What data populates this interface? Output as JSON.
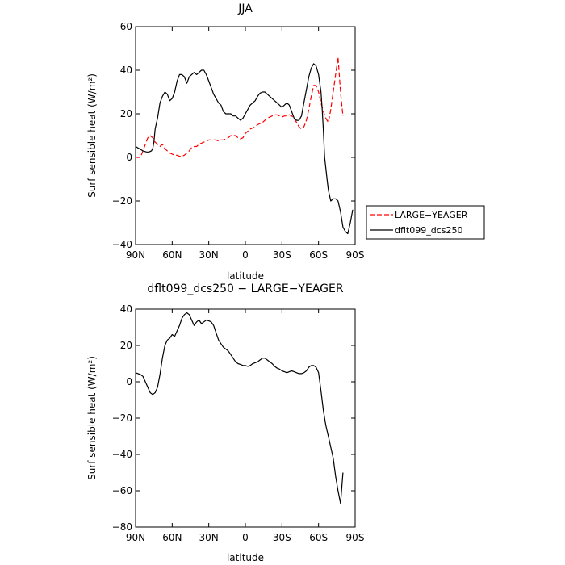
{
  "chart_data": [
    {
      "type": "line",
      "title": "JJA",
      "xlabel": "latitude",
      "ylabel": "Surf sensible heat (W/m²)",
      "xlim": [
        90,
        -90
      ],
      "ylim": [
        -40,
        60
      ],
      "xticks": [
        90,
        60,
        30,
        0,
        -30,
        -60,
        -90
      ],
      "xtick_labels": [
        "90N",
        "60N",
        "30N",
        "0",
        "30S",
        "60S",
        "90S"
      ],
      "yticks": [
        -40,
        -20,
        0,
        20,
        40,
        60
      ],
      "ytick_labels": [
        "−40",
        "−20",
        "0",
        "20",
        "40",
        "60"
      ],
      "legend": "right",
      "series": [
        {
          "name": "LARGE−YEAGER",
          "color": "#ff0000",
          "style": "dashed",
          "x": [
            90,
            86,
            84,
            80,
            78,
            76,
            74,
            72,
            70,
            68,
            66,
            64,
            62,
            60,
            58,
            56,
            54,
            52,
            50,
            48,
            46,
            44,
            42,
            40,
            38,
            36,
            34,
            32,
            30,
            28,
            26,
            24,
            22,
            20,
            18,
            16,
            14,
            12,
            10,
            8,
            6,
            4,
            2,
            0,
            -2,
            -4,
            -6,
            -8,
            -10,
            -12,
            -14,
            -16,
            -18,
            -20,
            -22,
            -24,
            -26,
            -28,
            -30,
            -32,
            -34,
            -36,
            -38,
            -40,
            -42,
            -44,
            -46,
            -48,
            -50,
            -52,
            -54,
            -56,
            -58,
            -60,
            -62,
            -64,
            -66,
            -68,
            -70,
            -72,
            -74,
            -76,
            -78,
            -80
          ],
          "y": [
            0,
            0,
            3,
            9,
            10,
            9,
            7,
            6,
            5,
            6,
            4,
            3,
            2,
            1.5,
            1,
            1,
            0.5,
            0.5,
            1,
            2,
            3,
            4.5,
            5,
            5,
            6,
            6.5,
            7,
            7.5,
            8,
            8,
            8,
            8,
            7.5,
            8,
            8,
            8.5,
            9,
            10,
            10,
            10,
            9,
            8.5,
            9,
            11,
            12,
            13,
            13.5,
            14,
            15,
            15.5,
            16,
            17,
            18,
            18.5,
            19,
            19.5,
            19.5,
            19,
            18.5,
            19,
            19,
            19.5,
            19,
            18,
            16,
            14,
            13,
            14,
            17,
            22,
            28,
            33,
            33,
            30,
            25,
            21,
            18,
            16,
            22,
            30,
            38,
            46,
            30,
            19
          ]
        },
        {
          "name": "dflt099_dcs250",
          "color": "#000000",
          "style": "solid",
          "x": [
            90,
            87,
            84,
            81,
            79,
            77,
            76,
            75,
            74,
            72,
            70,
            68,
            66,
            64,
            62,
            60,
            58,
            56,
            54,
            52,
            50,
            48,
            46,
            44,
            42,
            40,
            38,
            36,
            34,
            32,
            30,
            28,
            26,
            24,
            22,
            20,
            18,
            16,
            14,
            12,
            10,
            8,
            6,
            4,
            2,
            0,
            -2,
            -4,
            -6,
            -8,
            -10,
            -12,
            -14,
            -16,
            -18,
            -20,
            -22,
            -24,
            -26,
            -28,
            -30,
            -32,
            -34,
            -36,
            -38,
            -40,
            -42,
            -44,
            -46,
            -48,
            -50,
            -52,
            -54,
            -56,
            -58,
            -60,
            -62,
            -63,
            -64,
            -65,
            -66,
            -67,
            -68,
            -70,
            -72,
            -74,
            -76,
            -78,
            -80,
            -82,
            -84,
            -86,
            -88
          ],
          "y": [
            5,
            4,
            3,
            2.5,
            2.5,
            3,
            4,
            7,
            13,
            18,
            25,
            28,
            30,
            29,
            26,
            27,
            30,
            35,
            38,
            38,
            37,
            34,
            37,
            38,
            39,
            38,
            39,
            40,
            40,
            38,
            35,
            32,
            29,
            27,
            25,
            24,
            21,
            20,
            20,
            20,
            19,
            19,
            18,
            17,
            18,
            20,
            22,
            24,
            25,
            26,
            28,
            29.5,
            30,
            30,
            29,
            28,
            27,
            26,
            25,
            24,
            23,
            24,
            25,
            24,
            21,
            18,
            17,
            17,
            19,
            25,
            31,
            37,
            41,
            43,
            42,
            38,
            30,
            22,
            12,
            0,
            -5,
            -10,
            -15,
            -20,
            -19,
            -19,
            -20,
            -25,
            -32,
            -34,
            -35,
            -30,
            -24
          ]
        }
      ]
    },
    {
      "type": "line",
      "title": "dflt099_dcs250 − LARGE−YEAGER",
      "xlabel": "latitude",
      "ylabel": "Surf sensible heat (W/m²)",
      "xlim": [
        90,
        -90
      ],
      "ylim": [
        -80,
        40
      ],
      "xticks": [
        90,
        60,
        30,
        0,
        -30,
        -60,
        -90
      ],
      "xtick_labels": [
        "90N",
        "60N",
        "30N",
        "0",
        "30S",
        "60S",
        "90S"
      ],
      "yticks": [
        -80,
        -60,
        -40,
        -20,
        0,
        20,
        40
      ],
      "ytick_labels": [
        "−80",
        "−60",
        "−40",
        "−20",
        "0",
        "20",
        "40"
      ],
      "series": [
        {
          "color": "#000000",
          "style": "solid",
          "x": [
            90,
            88,
            86,
            84,
            82,
            80,
            78,
            76,
            74,
            72,
            70,
            68,
            66,
            64,
            62,
            60,
            58,
            56,
            54,
            52,
            50,
            48,
            46,
            44,
            42,
            40,
            38,
            36,
            34,
            32,
            30,
            28,
            26,
            24,
            22,
            20,
            18,
            16,
            14,
            12,
            10,
            8,
            6,
            4,
            2,
            0,
            -2,
            -4,
            -6,
            -8,
            -10,
            -12,
            -14,
            -16,
            -18,
            -20,
            -22,
            -24,
            -26,
            -28,
            -30,
            -32,
            -34,
            -36,
            -38,
            -40,
            -42,
            -44,
            -46,
            -48,
            -50,
            -52,
            -54,
            -56,
            -58,
            -60,
            -62,
            -64,
            -66,
            -68,
            -70,
            -72,
            -74,
            -76,
            -78,
            -80
          ],
          "y": [
            5,
            4.5,
            4,
            3,
            0,
            -3,
            -6,
            -7,
            -6,
            -3,
            4,
            13,
            20,
            23,
            24,
            26,
            25,
            28,
            31,
            35,
            37,
            38,
            37,
            34,
            31,
            33,
            34,
            32,
            33,
            34,
            33.5,
            33,
            31,
            27,
            23,
            21,
            19,
            18,
            17,
            15,
            13,
            11,
            10,
            9.5,
            9,
            9,
            8.5,
            9,
            10,
            10.5,
            11,
            12,
            13,
            13,
            12,
            11,
            10,
            8.5,
            7.5,
            7,
            6,
            5.5,
            5,
            5.5,
            6,
            5.5,
            5,
            4.5,
            4.5,
            5,
            6,
            8,
            9,
            9,
            8,
            5,
            -5,
            -16,
            -24,
            -30,
            -36,
            -42,
            -52,
            -60,
            -67,
            -50
          ]
        }
      ]
    }
  ]
}
